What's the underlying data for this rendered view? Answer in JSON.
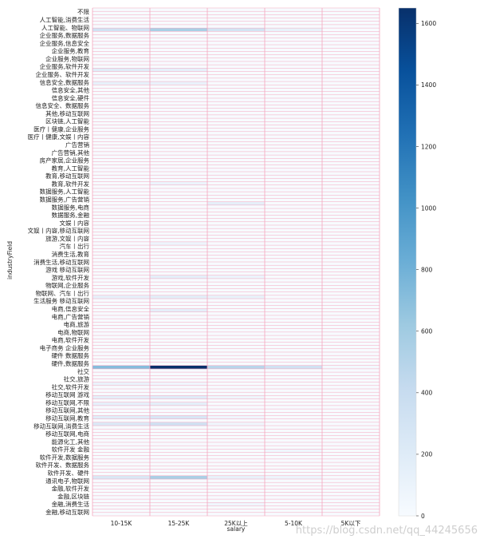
{
  "chart_data": {
    "type": "heatmap",
    "xlabel": "salary",
    "ylabel": "industryField",
    "x_categories": [
      "10-15K",
      "15-25K",
      "25K以上",
      "5-10K",
      "5K以下"
    ],
    "y_tick_labels": [
      "不限",
      "人工智能,消费生活",
      "人工智能、物联网",
      "企业服务,数据服务",
      "企业服务,信息安全",
      "企业服务,教育",
      "企业服务,物联网",
      "企业服务,软件开发",
      "企业服务、软件开发",
      "信息安全,数据服务",
      "信息安全,其他",
      "信息安全,硬件",
      "信息安全、数据服务",
      "其他,移动互联网",
      "区块链,人工智能",
      "医疗丨健康,企业服务",
      "医疗丨健康,文娱丨内容",
      "广告营销",
      "广告营销,其他",
      "房产家居,企业服务",
      "教育,人工智能",
      "教育,移动互联网",
      "教育,软件开发",
      "数据服务,人工智能",
      "数据服务,广告营销",
      "数据服务,电商",
      "数据服务,金融",
      "文娱丨内容",
      "文娱丨内容,移动互联网",
      "旅游,文娱丨内容",
      "汽车丨出行",
      "消费生活,教育",
      "消费生活,移动互联网",
      "游戏 移动互联网",
      "游戏,软件开发",
      "物联网,企业服务",
      "物联网、汽车丨出行",
      "生活服务 移动互联网",
      "电商,信息安全",
      "电商,广告营销",
      "电商,旅游",
      "电商,物联网",
      "电商,软件开发",
      "电子商务 企业服务",
      "硬件 数据服务",
      "硬件,数据服务",
      "社交",
      "社交,旅游",
      "社交,软件开发",
      "移动互联网 游戏",
      "移动互联网,不限",
      "移动互联网,其他",
      "移动互联网,教育",
      "移动互联网,消费生活",
      "移动互联网,电商",
      "能源化工,其他",
      "软件开发 金融",
      "软件开发,数据服务",
      "软件开发、数据服务",
      "软件开发、硬件",
      "通讯电子,物联网",
      "金融,软件开发",
      "金融,区块链",
      "金融,消费生活",
      "金融,移动互联网"
    ],
    "row_count": 152,
    "colorbar": {
      "min": 0,
      "max": 1650,
      "ticks": [
        0,
        200,
        400,
        600,
        800,
        1000,
        1200,
        1400,
        1600
      ]
    },
    "colormap": "Blues",
    "gridline_color": "#f4a6bd",
    "notable_cells": [
      {
        "row": 6,
        "col": 0,
        "value": 320
      },
      {
        "row": 6,
        "col": 1,
        "value": 560
      },
      {
        "row": 6,
        "col": 2,
        "value": 300
      },
      {
        "row": 6,
        "col": 3,
        "value": 120
      },
      {
        "row": 18,
        "col": 0,
        "value": 180
      },
      {
        "row": 18,
        "col": 1,
        "value": 140
      },
      {
        "row": 22,
        "col": 0,
        "value": 130
      },
      {
        "row": 22,
        "col": 1,
        "value": 110
      },
      {
        "row": 52,
        "col": 1,
        "value": 90
      },
      {
        "row": 58,
        "col": 2,
        "value": 150
      },
      {
        "row": 70,
        "col": 1,
        "value": 80
      },
      {
        "row": 80,
        "col": 1,
        "value": 160
      },
      {
        "row": 80,
        "col": 2,
        "value": 90
      },
      {
        "row": 86,
        "col": 0,
        "value": 140
      },
      {
        "row": 86,
        "col": 1,
        "value": 170
      },
      {
        "row": 86,
        "col": 2,
        "value": 120
      },
      {
        "row": 90,
        "col": 1,
        "value": 150
      },
      {
        "row": 107,
        "col": 0,
        "value": 720
      },
      {
        "row": 107,
        "col": 1,
        "value": 1650
      },
      {
        "row": 107,
        "col": 2,
        "value": 480
      },
      {
        "row": 107,
        "col": 3,
        "value": 330
      },
      {
        "row": 107,
        "col": 4,
        "value": 30
      },
      {
        "row": 112,
        "col": 0,
        "value": 100
      },
      {
        "row": 112,
        "col": 1,
        "value": 60
      },
      {
        "row": 116,
        "col": 0,
        "value": 150
      },
      {
        "row": 116,
        "col": 1,
        "value": 190
      },
      {
        "row": 116,
        "col": 2,
        "value": 70
      },
      {
        "row": 118,
        "col": 0,
        "value": 140
      },
      {
        "row": 118,
        "col": 1,
        "value": 160
      },
      {
        "row": 122,
        "col": 0,
        "value": 180
      },
      {
        "row": 122,
        "col": 1,
        "value": 260
      },
      {
        "row": 122,
        "col": 2,
        "value": 60
      },
      {
        "row": 124,
        "col": 0,
        "value": 230
      },
      {
        "row": 124,
        "col": 1,
        "value": 330
      },
      {
        "row": 124,
        "col": 2,
        "value": 70
      },
      {
        "row": 132,
        "col": 3,
        "value": 60
      },
      {
        "row": 140,
        "col": 0,
        "value": 250
      },
      {
        "row": 140,
        "col": 1,
        "value": 560
      },
      {
        "row": 140,
        "col": 2,
        "value": 120
      },
      {
        "row": 140,
        "col": 3,
        "value": 80
      },
      {
        "row": 148,
        "col": 2,
        "value": 60
      }
    ]
  },
  "watermark": "https://blog.csdn.net/qq_44245656"
}
